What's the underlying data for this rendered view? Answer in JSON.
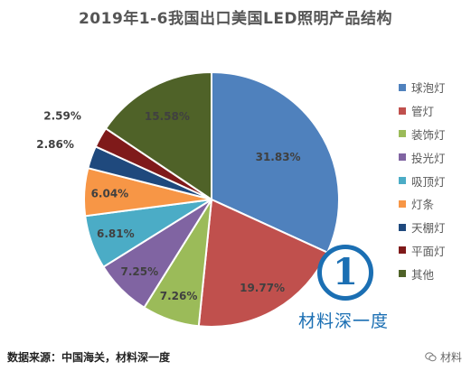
{
  "chart_data": {
    "type": "pie",
    "title": "2019年1-6我国出口美国LED照明产品结构",
    "categories": [
      "球泡灯",
      "管灯",
      "装饰灯",
      "投光灯",
      "吸顶灯",
      "灯条",
      "天棚灯",
      "平面灯",
      "其他"
    ],
    "values": [
      31.83,
      19.77,
      7.26,
      7.25,
      6.81,
      6.04,
      2.86,
      2.59,
      15.58
    ],
    "labels": [
      "31.83%",
      "19.77%",
      "7.26%",
      "7.25%",
      "6.81%",
      "6.04%",
      "2.86%",
      "2.59%",
      "15.58%"
    ],
    "colors": [
      "#4f81bd",
      "#c0504d",
      "#9bbb59",
      "#8064a2",
      "#4bacc6",
      "#f79646",
      "#1f497d",
      "#7f1a1a",
      "#4f6228"
    ],
    "start_angle": "12 o'clock",
    "direction": "clockwise",
    "legend": "right"
  },
  "source": "数据来源：中国海关，材料深一度",
  "watermark": {
    "text": "材料深一度",
    "logo": "1",
    "color": "#1b6fb3"
  },
  "credit": {
    "text": "材料",
    "icon": "wechat-icon"
  }
}
